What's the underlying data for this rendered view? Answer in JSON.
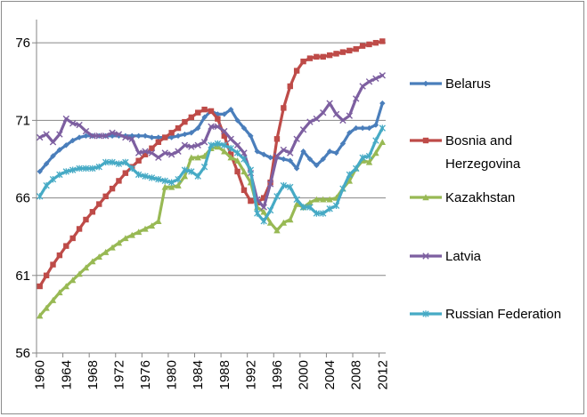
{
  "chart_data": {
    "type": "line",
    "title": "",
    "xlabel": "",
    "ylabel": "",
    "x": [
      1960,
      1961,
      1962,
      1963,
      1964,
      1965,
      1966,
      1967,
      1968,
      1969,
      1970,
      1971,
      1972,
      1973,
      1974,
      1975,
      1976,
      1977,
      1978,
      1979,
      1980,
      1981,
      1982,
      1983,
      1984,
      1985,
      1986,
      1987,
      1988,
      1989,
      1990,
      1991,
      1992,
      1993,
      1994,
      1995,
      1996,
      1997,
      1998,
      1999,
      2000,
      2001,
      2002,
      2003,
      2004,
      2005,
      2006,
      2007,
      2008,
      2009,
      2010,
      2011,
      2012
    ],
    "xticks": [
      "1960",
      "1964",
      "1968",
      "1972",
      "1976",
      "1980",
      "1984",
      "1988",
      "1992",
      "1996",
      "2000",
      "2004",
      "2008",
      "2012"
    ],
    "yticks": [
      "56",
      "61",
      "66",
      "71",
      "76"
    ],
    "ylim": [
      56,
      77.5
    ],
    "grid": true,
    "legend_position": "right",
    "series": [
      {
        "name": "Belarus",
        "color": "#4a7ebb",
        "marker": "diamond",
        "values": [
          67.7,
          68.2,
          68.7,
          69.1,
          69.4,
          69.7,
          69.9,
          70.0,
          70.0,
          70.0,
          70.0,
          70.0,
          70.0,
          70.0,
          70.0,
          70.0,
          70.0,
          69.9,
          69.9,
          69.9,
          69.9,
          70.0,
          70.1,
          70.2,
          70.5,
          71.2,
          71.6,
          71.4,
          71.4,
          71.7,
          71.0,
          70.5,
          70.0,
          69.0,
          68.8,
          68.6,
          68.6,
          68.5,
          68.4,
          67.9,
          69.0,
          68.5,
          68.1,
          68.5,
          69.0,
          68.9,
          69.5,
          70.2,
          70.5,
          70.5,
          70.5,
          70.7,
          72.1
        ]
      },
      {
        "name": "Bosnia and Herzegovina",
        "color": "#be4b48",
        "marker": "square",
        "values": [
          60.3,
          61.0,
          61.7,
          62.3,
          62.9,
          63.4,
          64.0,
          64.6,
          65.1,
          65.6,
          66.1,
          66.6,
          67.1,
          67.6,
          68.0,
          68.4,
          68.8,
          69.2,
          69.6,
          69.9,
          70.2,
          70.5,
          70.9,
          71.2,
          71.5,
          71.7,
          71.6,
          71.1,
          70.0,
          68.8,
          67.7,
          66.5,
          65.8,
          65.7,
          66.0,
          67.0,
          69.8,
          71.8,
          73.2,
          74.2,
          74.8,
          75.0,
          75.1,
          75.1,
          75.2,
          75.3,
          75.4,
          75.5,
          75.6,
          75.8,
          75.9,
          76.0,
          76.1
        ]
      },
      {
        "name": "Kazakhstan",
        "color": "#98b954",
        "marker": "triangle",
        "values": [
          58.4,
          58.9,
          59.4,
          59.9,
          60.3,
          60.7,
          61.1,
          61.5,
          61.9,
          62.2,
          62.5,
          62.8,
          63.1,
          63.4,
          63.6,
          63.8,
          64.0,
          64.2,
          64.5,
          66.7,
          66.7,
          66.8,
          67.4,
          68.6,
          68.6,
          68.7,
          69.2,
          69.3,
          69.0,
          68.6,
          68.4,
          67.7,
          67.0,
          65.4,
          65.1,
          64.4,
          63.9,
          64.4,
          64.6,
          65.6,
          65.4,
          65.7,
          65.9,
          65.9,
          65.9,
          66.0,
          66.6,
          67.1,
          67.9,
          68.4,
          68.3,
          68.9,
          69.6
        ]
      },
      {
        "name": "Latvia",
        "color": "#7d5fa0",
        "marker": "x",
        "values": [
          69.9,
          70.1,
          69.6,
          70.1,
          71.1,
          70.8,
          70.7,
          70.3,
          70.0,
          70.0,
          70.0,
          70.2,
          70.1,
          69.9,
          69.8,
          68.9,
          69.0,
          68.9,
          68.6,
          68.9,
          68.8,
          69.0,
          69.4,
          69.3,
          69.4,
          69.6,
          70.6,
          70.6,
          70.3,
          69.8,
          69.4,
          68.9,
          67.6,
          65.9,
          65.4,
          66.9,
          68.7,
          69.1,
          68.9,
          69.8,
          70.4,
          70.9,
          71.1,
          71.5,
          72.1,
          71.4,
          71.0,
          71.3,
          72.4,
          73.2,
          73.5,
          73.7,
          73.9
        ]
      },
      {
        "name": "Russian Federation",
        "color": "#46aac5",
        "marker": "star",
        "values": [
          66.1,
          66.8,
          67.2,
          67.5,
          67.7,
          67.8,
          67.9,
          67.9,
          67.9,
          68.0,
          68.3,
          68.3,
          68.2,
          68.3,
          67.9,
          67.5,
          67.4,
          67.3,
          67.2,
          67.1,
          67.0,
          67.2,
          67.8,
          67.7,
          67.4,
          68.0,
          69.4,
          69.5,
          69.4,
          69.2,
          68.9,
          68.5,
          67.8,
          65.0,
          64.5,
          65.2,
          66.1,
          66.8,
          66.7,
          65.9,
          65.4,
          65.4,
          65.0,
          65.0,
          65.3,
          65.5,
          66.6,
          67.5,
          67.9,
          68.6,
          68.7,
          69.7,
          70.5
        ]
      }
    ]
  }
}
